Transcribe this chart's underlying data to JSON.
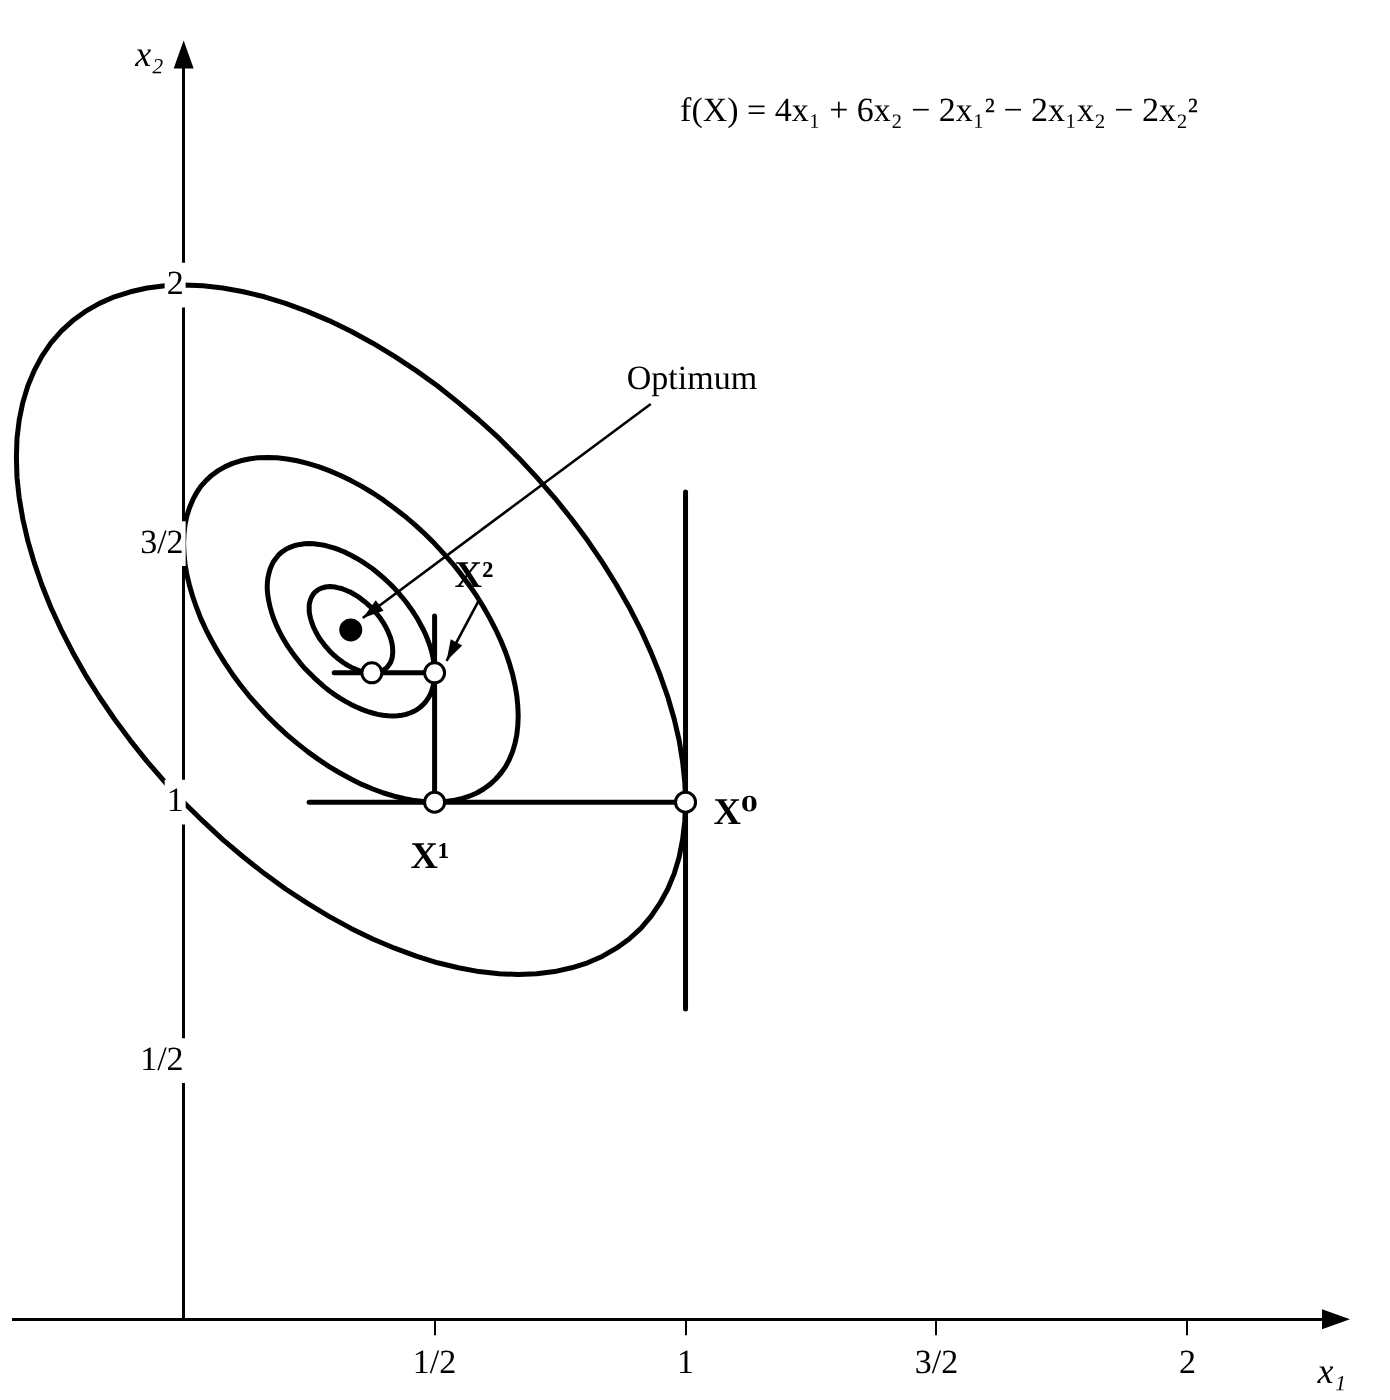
{
  "chart_data": {
    "type": "line",
    "title": "f(X) = 4x₁ + 6x₂ − 2x₁² − 2x₁x₂ − 2x₂²",
    "xlabel": "x₁",
    "ylabel": "x₂",
    "xlim": [
      -0.34,
      2.3
    ],
    "ylim": [
      0,
      2.45
    ],
    "xticks": [
      {
        "value": 0.5,
        "label": "1/2"
      },
      1,
      {
        "value": 1.5,
        "label": "3/2"
      },
      2
    ],
    "yticks": [
      {
        "value": 0.5,
        "label": "1/2"
      },
      1,
      {
        "value": 1.5,
        "label": "3/2"
      },
      2
    ],
    "grid": false,
    "legend": false,
    "line_style": "solid",
    "series": [
      {
        "color": "#000000",
        "x": [
          1,
          1
        ],
        "values": [
          0.6,
          1.6
        ]
      },
      {
        "color": "#000000",
        "x": [
          0.25,
          1
        ],
        "values": [
          1,
          1
        ]
      },
      {
        "color": "#000000",
        "x": [
          0.5,
          0.5
        ],
        "values": [
          1,
          1.36
        ]
      },
      {
        "color": "#000000",
        "x": [
          0.3,
          0.5
        ],
        "values": [
          1.25,
          1.25
        ]
      },
      {
        "type": "scatter",
        "color": "#ffffff",
        "marker": "circle",
        "x": [
          1,
          0.5,
          0.5,
          0.375
        ],
        "values": [
          1,
          1,
          1.25,
          1.25
        ]
      },
      {
        "type": "scatter",
        "color": "#000000",
        "marker": "circle",
        "x": [
          0.333
        ],
        "values": [
          1.333
        ]
      }
    ],
    "annotations": [
      {
        "text": "Optimum",
        "x": 0.333,
        "y": 1.333
      },
      {
        "text": "X²",
        "x": 0.5,
        "y": 1.25
      },
      {
        "text": "X⁰",
        "x": 1,
        "y": 1
      },
      {
        "text": "X¹",
        "x": 0.5,
        "y": 1
      }
    ]
  }
}
